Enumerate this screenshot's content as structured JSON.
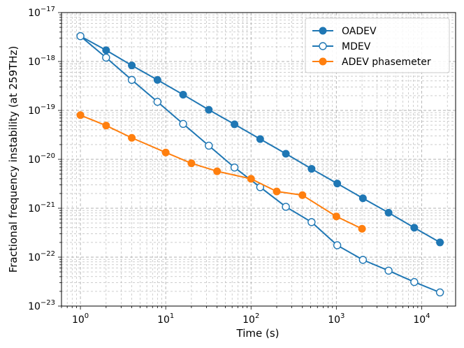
{
  "chart_data": {
    "type": "line",
    "xscale": "log",
    "yscale": "log",
    "xlabel": "Time (s)",
    "ylabel": "Fractional frequency instability (at 259THz)",
    "xlim": [
      0.6,
      25000
    ],
    "ylim": [
      1e-23,
      1e-17
    ],
    "grid": "major and minor, dashed",
    "legend": "top-right",
    "x_tick_labels": [
      {
        "base": "10",
        "exp": "0",
        "value": 1
      },
      {
        "base": "10",
        "exp": "1",
        "value": 10
      },
      {
        "base": "10",
        "exp": "2",
        "value": 100
      },
      {
        "base": "10",
        "exp": "3",
        "value": 1000
      },
      {
        "base": "10",
        "exp": "4",
        "value": 10000
      }
    ],
    "y_tick_labels": [
      {
        "base": "10",
        "exp": "−23",
        "value": 1e-23
      },
      {
        "base": "10",
        "exp": "−22",
        "value": 1e-22
      },
      {
        "base": "10",
        "exp": "−21",
        "value": 1e-21
      },
      {
        "base": "10",
        "exp": "−20",
        "value": 1e-20
      },
      {
        "base": "10",
        "exp": "−19",
        "value": 1e-19
      },
      {
        "base": "10",
        "exp": "−18",
        "value": 1e-18
      },
      {
        "base": "10",
        "exp": "−17",
        "value": 1e-17
      }
    ],
    "series": [
      {
        "name": "OADEV",
        "color": "#1f77b4",
        "marker": "filled-circle",
        "x": [
          1,
          2,
          4,
          8,
          16,
          32,
          64,
          128,
          256,
          512,
          1024,
          2048,
          4096,
          8192,
          16384
        ],
        "y": [
          3.3e-18,
          1.7e-18,
          8.3e-19,
          4.2e-19,
          2.1e-19,
          1.03e-19,
          5.2e-20,
          2.6e-20,
          1.3e-20,
          6.4e-21,
          3.2e-21,
          1.6e-21,
          8.1e-22,
          4e-22,
          2e-22
        ]
      },
      {
        "name": "MDEV",
        "color": "#1f77b4",
        "marker": "hollow-circle",
        "x": [
          1,
          2,
          4,
          8,
          16,
          32,
          64,
          128,
          256,
          512,
          1024,
          2048,
          4096,
          8192,
          16384
        ],
        "y": [
          3.3e-18,
          1.2e-18,
          4.2e-19,
          1.5e-19,
          5.3e-20,
          1.9e-20,
          6.8e-21,
          2.7e-21,
          1.07e-21,
          5.2e-22,
          1.75e-22,
          8.8e-23,
          5.3e-23,
          3.1e-23,
          1.9e-23
        ]
      },
      {
        "name": "ADEV phasemeter",
        "color": "#ff7f0e",
        "marker": "filled-circle",
        "x": [
          1,
          2,
          4,
          10,
          20,
          40,
          100,
          200,
          400,
          1000,
          2000
        ],
        "y": [
          8e-20,
          4.9e-20,
          2.75e-20,
          1.38e-20,
          8.3e-21,
          5.7e-21,
          4e-21,
          2.2e-21,
          1.85e-21,
          6.8e-22,
          3.8e-22
        ]
      }
    ]
  }
}
